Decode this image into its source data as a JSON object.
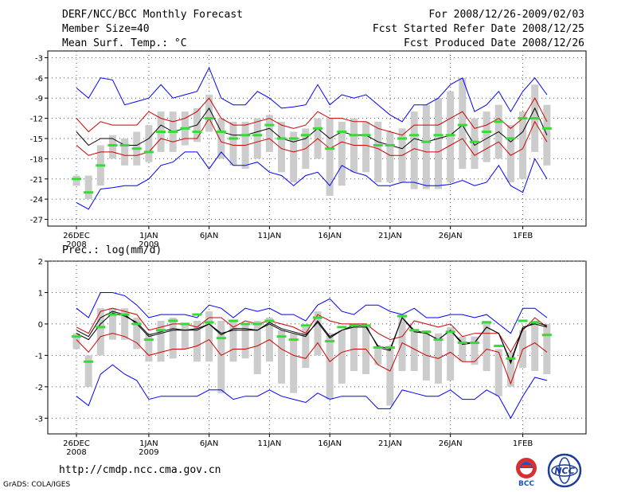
{
  "header": {
    "title": "DERF/NCC/BCC Monthly Forecast",
    "member_size": "Member Size=40",
    "variable": "Mean Surf. Temp.: °C",
    "period": "For 2008/12/26-2009/02/03",
    "started": "Fcst Started Refer Date 2008/12/25",
    "produced": "Fcst Produced Date 2008/12/26"
  },
  "footer": {
    "url": "http://cmdp.ncc.cma.gov.cn",
    "grads": "GrADS: COLA/IGES",
    "logo_bcc": "BCC",
    "logo_ncc": "NCC"
  },
  "colors": {
    "mean": "#000000",
    "spread": "#d00000",
    "extreme": "#0000ff",
    "box": "#cccccc",
    "median": "#33dd33"
  },
  "x_labels": [
    {
      "day": 0,
      "line1": "26DEC",
      "line2": "2008"
    },
    {
      "day": 6,
      "line1": "1JAN",
      "line2": "2009"
    },
    {
      "day": 11,
      "line1": "6JAN",
      "line2": ""
    },
    {
      "day": 16,
      "line1": "11JAN",
      "line2": ""
    },
    {
      "day": 21,
      "line1": "16JAN",
      "line2": ""
    },
    {
      "day": 26,
      "line1": "21JAN",
      "line2": ""
    },
    {
      "day": 31,
      "line1": "26JAN",
      "line2": ""
    },
    {
      "day": 37,
      "line1": "1FEB",
      "line2": ""
    }
  ],
  "chart_data": [
    {
      "type": "line",
      "title": "Mean Surf. Temp.: °C",
      "ylim": [
        -28,
        -2
      ],
      "yticks": [
        -27,
        -24,
        -21,
        -18,
        -15,
        -12,
        -9,
        -6,
        -3
      ],
      "ylabel_fmt": "int",
      "x": [
        0,
        1,
        2,
        3,
        4,
        5,
        6,
        7,
        8,
        9,
        10,
        11,
        12,
        13,
        14,
        15,
        16,
        17,
        18,
        19,
        20,
        21,
        22,
        23,
        24,
        25,
        26,
        27,
        28,
        29,
        30,
        31,
        32,
        33,
        34,
        35,
        36,
        37,
        38,
        39
      ],
      "series": [
        {
          "name": "max",
          "role": "extreme",
          "values": [
            -7.5,
            -9,
            -6,
            -6.3,
            -10,
            -9.5,
            -9,
            -7,
            -9,
            -8.5,
            -8,
            -4.5,
            -9,
            -10,
            -10,
            -8,
            -9,
            -10.5,
            -10.3,
            -10,
            -7,
            -10,
            -8.5,
            -9,
            -8.5,
            -10,
            -11.5,
            -12.5,
            -10,
            -10,
            -9,
            -7,
            -6,
            -11,
            -10,
            -8,
            -11,
            -8,
            -6,
            -8.5
          ]
        },
        {
          "name": "upper",
          "role": "spread",
          "values": [
            -12,
            -14,
            -12.5,
            -13,
            -13,
            -13,
            -11,
            -12,
            -12.5,
            -12,
            -11,
            -9,
            -12,
            -13,
            -13,
            -12.5,
            -12,
            -13,
            -13.5,
            -13,
            -11,
            -12,
            -12,
            -12.5,
            -12.5,
            -13.5,
            -14,
            -14.5,
            -13,
            -13,
            -13,
            -12,
            -11,
            -13.5,
            -13,
            -12,
            -13.5,
            -12,
            -9,
            -12.5
          ]
        },
        {
          "name": "mean",
          "role": "mean",
          "values": [
            -14,
            -16,
            -15,
            -15,
            -16,
            -16,
            -15,
            -13,
            -14,
            -13.5,
            -13,
            -10.5,
            -14,
            -14.5,
            -14.5,
            -14,
            -13.5,
            -15,
            -15.5,
            -15,
            -13.5,
            -15,
            -14,
            -14.5,
            -14.5,
            -15.5,
            -16,
            -16.5,
            -15,
            -15.5,
            -15,
            -14.5,
            -13,
            -16,
            -15,
            -14,
            -15.5,
            -14,
            -10.5,
            -14.5
          ]
        },
        {
          "name": "lower",
          "role": "spread",
          "values": [
            -16,
            -17.5,
            -17,
            -17,
            -17.5,
            -17.5,
            -17,
            -15,
            -15.5,
            -15,
            -15,
            -12,
            -15.5,
            -16,
            -16,
            -15.5,
            -15,
            -16.5,
            -17,
            -16.5,
            -15,
            -16.5,
            -15.5,
            -16,
            -16,
            -16.5,
            -17.5,
            -17.5,
            -16.5,
            -17,
            -17,
            -16,
            -15,
            -17.5,
            -16.5,
            -15.5,
            -17.5,
            -16.5,
            -12.5,
            -15.5
          ]
        },
        {
          "name": "min",
          "role": "extreme",
          "values": [
            -24.5,
            -25.5,
            -22.5,
            -22.3,
            -22,
            -22,
            -21,
            -19,
            -18.5,
            -17,
            -17,
            -19.5,
            -17,
            -19,
            -19,
            -18.5,
            -20,
            -20.5,
            -22,
            -20.5,
            -20,
            -22,
            -19,
            -20,
            -20.5,
            -22,
            -22,
            -21.5,
            -21.5,
            -22,
            -22,
            -21.8,
            -21.2,
            -22,
            -21.5,
            -19,
            -22,
            -23,
            -18,
            -21
          ]
        }
      ],
      "boxes": [
        {
          "low": -22,
          "high": -20.5
        },
        {
          "low": -24,
          "high": -20.5
        },
        {
          "low": -22,
          "high": -16
        },
        {
          "low": -18,
          "high": -14.5
        },
        {
          "low": -19,
          "high": -15
        },
        {
          "low": -19,
          "high": -14
        },
        {
          "low": -18.5,
          "high": -13
        },
        {
          "low": -17,
          "high": -11
        },
        {
          "low": -17,
          "high": -11
        },
        {
          "low": -16,
          "high": -11
        },
        {
          "low": -15.5,
          "high": -10.5
        },
        {
          "low": -14,
          "high": -8.5
        },
        {
          "low": -18,
          "high": -12
        },
        {
          "low": -19,
          "high": -12.5
        },
        {
          "low": -19.5,
          "high": -12.5
        },
        {
          "low": -18,
          "high": -12
        },
        {
          "low": -17,
          "high": -11.5
        },
        {
          "low": -20,
          "high": -12.5
        },
        {
          "low": -21.5,
          "high": -14
        },
        {
          "low": -19.5,
          "high": -13.5
        },
        {
          "low": -18,
          "high": -12
        },
        {
          "low": -23.5,
          "high": -12
        },
        {
          "low": -22,
          "high": -12.5
        },
        {
          "low": -20,
          "high": -12
        },
        {
          "low": -20,
          "high": -12.5
        },
        {
          "low": -21.5,
          "high": -12.5
        },
        {
          "low": -21.5,
          "high": -14
        },
        {
          "low": -21.5,
          "high": -13.5
        },
        {
          "low": -22.5,
          "high": -11
        },
        {
          "low": -22.5,
          "high": -10
        },
        {
          "low": -22.5,
          "high": -9
        },
        {
          "low": -21.5,
          "high": -8
        },
        {
          "low": -19.5,
          "high": -6
        },
        {
          "low": -19.5,
          "high": -12
        },
        {
          "low": -18.5,
          "high": -11
        },
        {
          "low": -18,
          "high": -10
        },
        {
          "low": -21.5,
          "high": -13
        },
        {
          "low": -21,
          "high": -11
        },
        {
          "low": -17,
          "high": -7
        },
        {
          "low": -19,
          "high": -10
        }
      ],
      "median": [
        -21,
        -23,
        -19,
        -16,
        -16,
        -16.5,
        -17,
        -14,
        -14,
        -13.5,
        -14,
        -12,
        -14,
        -15,
        -14.5,
        -14.5,
        -13,
        -15,
        -15,
        -14.5,
        -13.5,
        -16.5,
        -14,
        -14.5,
        -14.5,
        -16,
        -16,
        -15,
        -14.5,
        -15.5,
        -14.5,
        -14.5,
        -13,
        -15.5,
        -14,
        -12.5,
        -15,
        -12,
        -12,
        -13.5
      ]
    },
    {
      "type": "line",
      "title": "Prec.: log(mm/d)",
      "ylim": [
        -3.5,
        2
      ],
      "yticks": [
        -3,
        -2,
        -1,
        0,
        1,
        2
      ],
      "ylabel_fmt": "int",
      "x": [
        0,
        1,
        2,
        3,
        4,
        5,
        6,
        7,
        8,
        9,
        10,
        11,
        12,
        13,
        14,
        15,
        16,
        17,
        18,
        19,
        20,
        21,
        22,
        23,
        24,
        25,
        26,
        27,
        28,
        29,
        30,
        31,
        32,
        33,
        34,
        35,
        36,
        37,
        38,
        39
      ],
      "series": [
        {
          "name": "max",
          "role": "extreme",
          "values": [
            0.5,
            0.2,
            1.0,
            1.0,
            0.9,
            0.6,
            0.2,
            0.3,
            0.3,
            0.3,
            0.2,
            0.6,
            0.5,
            0.2,
            0.5,
            0.4,
            0.5,
            0.3,
            0.3,
            0.1,
            0.6,
            0.8,
            0.4,
            0.3,
            0.6,
            0.6,
            0.4,
            0.3,
            0.5,
            0.2,
            0.2,
            0.3,
            0.3,
            0.2,
            0.3,
            0.0,
            -0.3,
            0.5,
            0.5,
            0.2
          ]
        },
        {
          "name": "upper",
          "role": "spread",
          "values": [
            -0.1,
            -0.3,
            0.4,
            0.5,
            0.4,
            0.3,
            -0.2,
            -0.1,
            0.0,
            0.0,
            -0.1,
            0.2,
            0.2,
            -0.1,
            0.1,
            0.0,
            0.1,
            0.0,
            -0.1,
            -0.3,
            0.3,
            0.1,
            0.0,
            0.0,
            0.0,
            -0.3,
            -0.5,
            -0.4,
            0.1,
            0.0,
            -0.1,
            0.0,
            -0.4,
            -0.3,
            -0.3,
            -0.3,
            -0.9,
            -0.2,
            0.2,
            -0.1
          ]
        },
        {
          "name": "mean",
          "role": "mean",
          "values": [
            -0.2,
            -0.4,
            0.2,
            0.4,
            0.3,
            0.0,
            -0.4,
            -0.3,
            -0.2,
            -0.2,
            -0.2,
            0.0,
            -0.3,
            -0.2,
            -0.2,
            -0.2,
            0.0,
            -0.2,
            -0.3,
            -0.4,
            0.1,
            -0.4,
            -0.2,
            -0.1,
            -0.1,
            -0.7,
            -0.8,
            0.2,
            -0.2,
            -0.3,
            -0.5,
            -0.2,
            -0.6,
            -0.6,
            -0.1,
            -0.3,
            -1.2,
            -0.1,
            0.0,
            -0.1
          ]
        },
        {
          "name": "lower",
          "role": "spread",
          "values": [
            -0.5,
            -0.9,
            -0.4,
            -0.3,
            -0.4,
            -0.6,
            -1.0,
            -0.9,
            -0.8,
            -0.8,
            -0.7,
            -0.5,
            -1.0,
            -0.8,
            -0.8,
            -0.7,
            -0.5,
            -0.8,
            -1.0,
            -1.1,
            -0.6,
            -1.2,
            -0.9,
            -0.8,
            -0.8,
            -1.3,
            -1.5,
            -0.6,
            -0.8,
            -1.0,
            -1.1,
            -0.9,
            -1.2,
            -1.2,
            -0.8,
            -0.9,
            -1.9,
            -0.8,
            -0.6,
            -0.9
          ]
        },
        {
          "name": "min",
          "role": "extreme",
          "values": [
            -2.3,
            -2.6,
            -1.6,
            -1.3,
            -1.6,
            -1.8,
            -2.4,
            -2.3,
            -2.3,
            -2.3,
            -2.3,
            -2.1,
            -2.1,
            -2.4,
            -2.3,
            -2.3,
            -2.1,
            -2.3,
            -2.4,
            -2.5,
            -2.2,
            -2.4,
            -2.3,
            -2.3,
            -2.3,
            -2.7,
            -2.7,
            -2.1,
            -2.2,
            -2.3,
            -2.3,
            -2.1,
            -2.4,
            -2.4,
            -2.1,
            -2.3,
            -3.0,
            -2.3,
            -1.7,
            -1.8
          ]
        },
        {
          "name": "median_trace",
          "role": "mean",
          "values": [
            -0.3,
            -0.5,
            0.0,
            0.35,
            0.25,
            0.05,
            -0.35,
            -0.25,
            -0.15,
            -0.2,
            -0.15,
            0.0,
            -0.35,
            -0.15,
            -0.15,
            -0.2,
            0.05,
            -0.15,
            -0.25,
            -0.35,
            0.05,
            -0.45,
            -0.2,
            -0.05,
            -0.05,
            -0.75,
            -0.85,
            0.2,
            -0.25,
            -0.3,
            -0.5,
            -0.2,
            -0.65,
            -0.6,
            -0.1,
            -0.3,
            -1.25,
            -0.15,
            0.05,
            -0.05
          ]
        }
      ],
      "boxes": [
        {
          "low": -0.8,
          "high": -0.3
        },
        {
          "low": -2.0,
          "high": -1.0
        },
        {
          "low": -1.0,
          "high": 0.5
        },
        {
          "low": -0.5,
          "high": 0.5
        },
        {
          "low": -0.5,
          "high": 0.5
        },
        {
          "low": -0.8,
          "high": 0.2
        },
        {
          "low": -1.2,
          "high": -0.3
        },
        {
          "low": -1.2,
          "high": 0.1
        },
        {
          "low": -1.1,
          "high": 0.2
        },
        {
          "low": -0.8,
          "high": 0.0
        },
        {
          "low": -1.2,
          "high": 0.1
        },
        {
          "low": -1.2,
          "high": 0.4
        },
        {
          "low": -2.2,
          "high": 0.1
        },
        {
          "low": -1.2,
          "high": 0.1
        },
        {
          "low": -1.1,
          "high": 0.0
        },
        {
          "low": -1.6,
          "high": 0.1
        },
        {
          "low": -1.2,
          "high": 0.2
        },
        {
          "low": -1.9,
          "high": -0.2
        },
        {
          "low": -2.2,
          "high": -0.3
        },
        {
          "low": -1.4,
          "high": -0.1
        },
        {
          "low": -1.0,
          "high": 0.4
        },
        {
          "low": -2.4,
          "high": -0.3
        },
        {
          "low": -1.9,
          "high": -0.2
        },
        {
          "low": -1.5,
          "high": -0.1
        },
        {
          "low": -1.6,
          "high": -0.1
        },
        {
          "low": -1.3,
          "high": -0.7
        },
        {
          "low": -2.6,
          "high": -0.7
        },
        {
          "low": -1.5,
          "high": 0.3
        },
        {
          "low": -1.5,
          "high": -0.2
        },
        {
          "low": -1.8,
          "high": -0.2
        },
        {
          "low": -1.9,
          "high": -0.3
        },
        {
          "low": -1.8,
          "high": -0.1
        },
        {
          "low": -1.2,
          "high": -0.4
        },
        {
          "low": -1.3,
          "high": -0.4
        },
        {
          "low": -1.5,
          "high": 0.1
        },
        {
          "low": -2.3,
          "high": -0.8
        },
        {
          "low": -2.0,
          "high": -0.9
        },
        {
          "low": -1.4,
          "high": -0.2
        },
        {
          "low": -1.5,
          "high": 0.1
        },
        {
          "low": -1.6,
          "high": 0.0
        }
      ],
      "median": [
        -0.4,
        -1.2,
        -0.1,
        0.3,
        0.3,
        0.0,
        -0.5,
        -0.2,
        0.1,
        0.0,
        0.3,
        0.05,
        -0.45,
        0.1,
        0.0,
        0.0,
        0.1,
        -0.4,
        -0.5,
        -0.05,
        0.2,
        -0.55,
        -0.1,
        -0.05,
        -0.05,
        -0.75,
        -0.75,
        0.25,
        -0.2,
        -0.25,
        -0.5,
        -0.25,
        -0.6,
        -0.6,
        0.05,
        -0.7,
        -1.1,
        0.1,
        0.05,
        -0.35
      ]
    }
  ]
}
